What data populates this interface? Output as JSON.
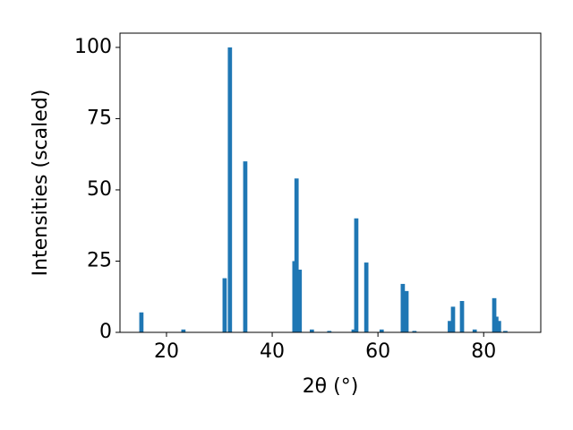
{
  "chart_data": {
    "type": "bar",
    "x_label": "2θ (°)",
    "y_label": "Intensities (scaled)",
    "x": [
      15.25,
      23.2,
      31.0,
      32.0,
      34.9,
      44.2,
      44.6,
      45.2,
      47.5,
      50.8,
      55.4,
      55.9,
      57.8,
      60.7,
      64.7,
      65.4,
      66.9,
      73.6,
      74.2,
      75.9,
      78.3,
      82.0,
      82.4,
      82.9,
      84.1
    ],
    "values": [
      7,
      1,
      19,
      100,
      60,
      25,
      54,
      22,
      1,
      0.5,
      1,
      40,
      24.5,
      1,
      17,
      14.5,
      0.5,
      4,
      9,
      11,
      1,
      12,
      5.5,
      4,
      0.5
    ],
    "color": "#1f77b4",
    "xlim": [
      11.2,
      90.8
    ],
    "xticks": [
      20,
      40,
      60,
      80
    ],
    "ylim": [
      0,
      105
    ],
    "yticks": [
      0,
      25,
      50,
      75,
      100
    ]
  }
}
